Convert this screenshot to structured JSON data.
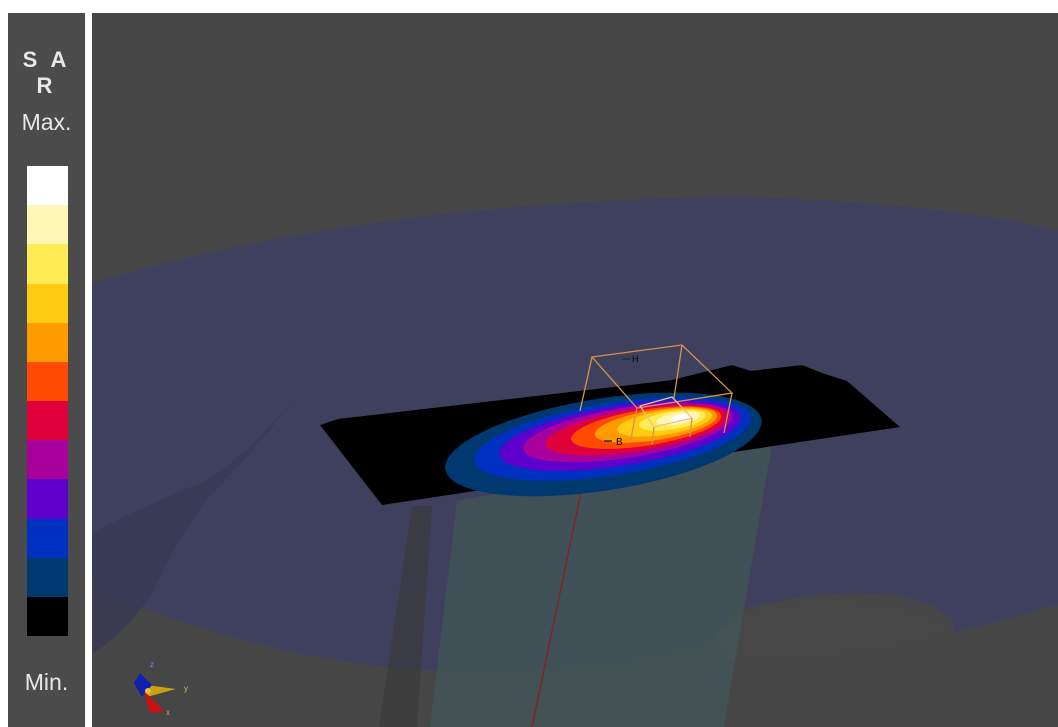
{
  "legend": {
    "title": "S A R",
    "max_label": "Max.",
    "min_label": "Min.",
    "colors": [
      "#ffffff",
      "#fff8b4",
      "#ffec55",
      "#ffcc12",
      "#ff9a00",
      "#ff4b00",
      "#e0003c",
      "#a8009a",
      "#6000cc",
      "#0030c0",
      "#003870",
      "#000000"
    ]
  },
  "scene": {
    "probe_labels": {
      "top": "H",
      "bottom": "B"
    },
    "axis_labels": {
      "y": "y",
      "z": "z",
      "x": "x"
    },
    "colors": {
      "background": "#464646",
      "phantom": "#3f4060",
      "measurement_plane": "#000000",
      "probe_box": "#d8924a",
      "column": "#415656"
    }
  }
}
